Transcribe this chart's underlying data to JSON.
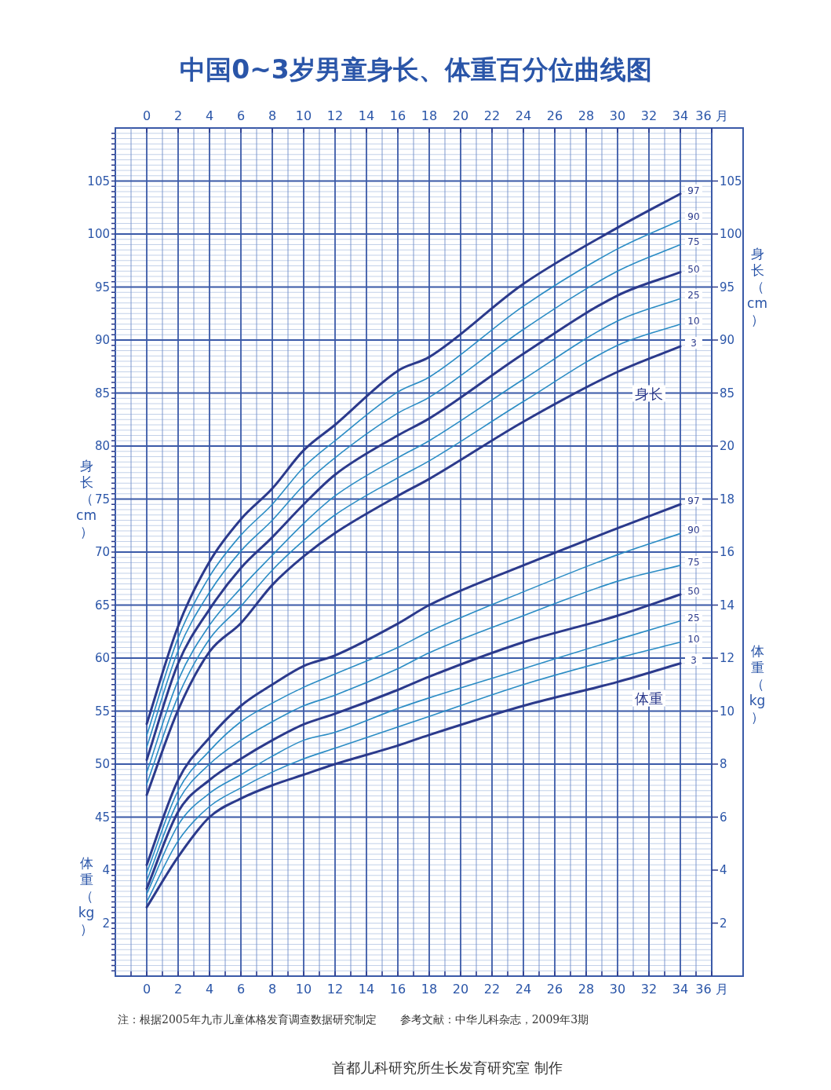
{
  "chart_data": [
    {
      "type": "line",
      "title": "中国0~3岁男童身长、体重百分位曲线图",
      "ylabel": "身长（cm）",
      "y2label": "身长（cm）",
      "x": [
        0,
        2,
        4,
        6,
        8,
        10,
        12,
        16,
        18,
        24,
        30,
        34
      ],
      "xlim": [
        -2,
        36
      ],
      "xticks": [
        0,
        2,
        4,
        6,
        8,
        10,
        12,
        14,
        16,
        18,
        20,
        22,
        24,
        26,
        28,
        30,
        32,
        34,
        {
          "value": 36,
          "label": "36 月"
        },
        {
          "value": -1,
          "label": null
        },
        {
          "value": 1,
          "label": null
        },
        {
          "value": 3,
          "label": null
        },
        {
          "value": 5,
          "label": null
        },
        {
          "value": 7,
          "label": null
        },
        {
          "value": 9,
          "label": null
        },
        {
          "value": 11,
          "label": null
        },
        {
          "value": 13,
          "label": null
        },
        {
          "value": 15,
          "label": null
        },
        {
          "value": 17,
          "label": null
        },
        {
          "value": 19,
          "label": null
        },
        {
          "value": 21,
          "label": null
        },
        {
          "value": 23,
          "label": null
        },
        {
          "value": 25,
          "label": null
        },
        {
          "value": 27,
          "label": null
        },
        {
          "value": 29,
          "label": null
        },
        {
          "value": 31,
          "label": null
        },
        {
          "value": 33,
          "label": null
        },
        {
          "value": 35,
          "label": null
        }
      ],
      "x2lim": [
        -2,
        36
      ],
      "x2ticks": [
        0,
        2,
        4,
        6,
        8,
        10,
        12,
        14,
        16,
        18,
        20,
        22,
        24,
        26,
        28,
        30,
        32,
        34,
        {
          "value": 36,
          "label": "36 月"
        }
      ],
      "ylim": [
        30,
        110
      ],
      "yticks": [
        45,
        50,
        55,
        60,
        65,
        70,
        75,
        80,
        85,
        90,
        95,
        100,
        105,
        {
          "value": 35,
          "label": null
        },
        {
          "value": 40,
          "label": null
        },
        {
          "value": 30.5,
          "label": null
        },
        {
          "value": 31,
          "label": null
        },
        {
          "value": 31.5,
          "label": null
        },
        {
          "value": 32,
          "label": null
        },
        {
          "value": 32.5,
          "label": null
        },
        {
          "value": 33,
          "label": null
        },
        {
          "value": 33.5,
          "label": null
        },
        {
          "value": 34,
          "label": null
        },
        {
          "value": 34.5,
          "label": null
        },
        {
          "value": 35.5,
          "label": null
        },
        {
          "value": 36,
          "label": null
        },
        {
          "value": 36.5,
          "label": null
        },
        {
          "value": 37,
          "label": null
        },
        {
          "value": 37.5,
          "label": null
        },
        {
          "value": 38,
          "label": null
        },
        {
          "value": 38.5,
          "label": null
        },
        {
          "value": 39,
          "label": null
        },
        {
          "value": 39.5,
          "label": null
        },
        {
          "value": 40.5,
          "label": null
        },
        {
          "value": 41,
          "label": null
        },
        {
          "value": 41.5,
          "label": null
        },
        {
          "value": 42,
          "label": null
        },
        {
          "value": 42.5,
          "label": null
        },
        {
          "value": 43,
          "label": null
        },
        {
          "value": 43.5,
          "label": null
        },
        {
          "value": 44,
          "label": null
        },
        {
          "value": 44.5,
          "label": null
        },
        {
          "value": 45.5,
          "label": null
        },
        {
          "value": 46,
          "label": null
        },
        {
          "value": 46.5,
          "label": null
        },
        {
          "value": 47,
          "label": null
        },
        {
          "value": 47.5,
          "label": null
        },
        {
          "value": 48,
          "label": null
        },
        {
          "value": 48.5,
          "label": null
        },
        {
          "value": 49,
          "label": null
        },
        {
          "value": 49.5,
          "label": null
        },
        {
          "value": 50.5,
          "label": null
        },
        {
          "value": 51,
          "label": null
        },
        {
          "value": 51.5,
          "label": null
        },
        {
          "value": 52,
          "label": null
        },
        {
          "value": 52.5,
          "label": null
        },
        {
          "value": 53,
          "label": null
        },
        {
          "value": 53.5,
          "label": null
        },
        {
          "value": 54,
          "label": null
        },
        {
          "value": 54.5,
          "label": null
        },
        {
          "value": 55.5,
          "label": null
        },
        {
          "value": 56,
          "label": null
        },
        {
          "value": 56.5,
          "label": null
        },
        {
          "value": 57,
          "label": null
        },
        {
          "value": 57.5,
          "label": null
        },
        {
          "value": 58,
          "label": null
        },
        {
          "value": 58.5,
          "label": null
        },
        {
          "value": 59,
          "label": null
        },
        {
          "value": 59.5,
          "label": null
        },
        {
          "value": 60.5,
          "label": null
        },
        {
          "value": 61,
          "label": null
        },
        {
          "value": 61.5,
          "label": null
        },
        {
          "value": 62,
          "label": null
        },
        {
          "value": 62.5,
          "label": null
        },
        {
          "value": 63,
          "label": null
        },
        {
          "value": 63.5,
          "label": null
        },
        {
          "value": 64,
          "label": null
        },
        {
          "value": 64.5,
          "label": null
        },
        {
          "value": 65.5,
          "label": null
        },
        {
          "value": 66,
          "label": null
        },
        {
          "value": 66.5,
          "label": null
        },
        {
          "value": 67,
          "label": null
        },
        {
          "value": 67.5,
          "label": null
        },
        {
          "value": 68,
          "label": null
        },
        {
          "value": 68.5,
          "label": null
        },
        {
          "value": 69,
          "label": null
        },
        {
          "value": 69.5,
          "label": null
        },
        {
          "value": 70.5,
          "label": null
        },
        {
          "value": 71,
          "label": null
        },
        {
          "value": 71.5,
          "label": null
        },
        {
          "value": 72,
          "label": null
        },
        {
          "value": 72.5,
          "label": null
        },
        {
          "value": 73,
          "label": null
        },
        {
          "value": 73.5,
          "label": null
        },
        {
          "value": 74,
          "label": null
        },
        {
          "value": 74.5,
          "label": null
        },
        {
          "value": 75.5,
          "label": null
        },
        {
          "value": 76,
          "label": null
        },
        {
          "value": 76.5,
          "label": null
        },
        {
          "value": 77,
          "label": null
        },
        {
          "value": 77.5,
          "label": null
        },
        {
          "value": 78,
          "label": null
        },
        {
          "value": 78.5,
          "label": null
        },
        {
          "value": 79,
          "label": null
        },
        {
          "value": 79.5,
          "label": null
        },
        {
          "value": 80.5,
          "label": null
        },
        {
          "value": 81,
          "label": null
        },
        {
          "value": 81.5,
          "label": null
        },
        {
          "value": 82,
          "label": null
        },
        {
          "value": 82.5,
          "label": null
        },
        {
          "value": 83,
          "label": null
        },
        {
          "value": 83.5,
          "label": null
        },
        {
          "value": 84,
          "label": null
        },
        {
          "value": 84.5,
          "label": null
        },
        {
          "value": 85.5,
          "label": null
        },
        {
          "value": 86,
          "label": null
        },
        {
          "value": 86.5,
          "label": null
        },
        {
          "value": 87,
          "label": null
        },
        {
          "value": 87.5,
          "label": null
        },
        {
          "value": 88,
          "label": null
        },
        {
          "value": 88.5,
          "label": null
        },
        {
          "value": 89,
          "label": null
        },
        {
          "value": 89.5,
          "label": null
        },
        {
          "value": 90.5,
          "label": null
        },
        {
          "value": 91,
          "label": null
        },
        {
          "value": 91.5,
          "label": null
        },
        {
          "value": 92,
          "label": null
        },
        {
          "value": 92.5,
          "label": null
        },
        {
          "value": 93,
          "label": null
        },
        {
          "value": 93.5,
          "label": null
        },
        {
          "value": 94,
          "label": null
        },
        {
          "value": 94.5,
          "label": null
        },
        {
          "value": 95.5,
          "label": null
        },
        {
          "value": 96,
          "label": null
        },
        {
          "value": 96.5,
          "label": null
        },
        {
          "value": 97,
          "label": null
        },
        {
          "value": 97.5,
          "label": null
        },
        {
          "value": 98,
          "label": null
        },
        {
          "value": 98.5,
          "label": null
        },
        {
          "value": 99,
          "label": null
        },
        {
          "value": 99.5,
          "label": null
        },
        {
          "value": 100.5,
          "label": null
        },
        {
          "value": 101,
          "label": null
        },
        {
          "value": 101.5,
          "label": null
        },
        {
          "value": 102,
          "label": null
        },
        {
          "value": 102.5,
          "label": null
        },
        {
          "value": 103,
          "label": null
        },
        {
          "value": 103.5,
          "label": null
        },
        {
          "value": 104,
          "label": null
        },
        {
          "value": 104.5,
          "label": null
        },
        {
          "value": 105.5,
          "label": null
        },
        {
          "value": 106,
          "label": null
        },
        {
          "value": 106.5,
          "label": null
        },
        {
          "value": 107,
          "label": null
        },
        {
          "value": 107.5,
          "label": null
        },
        {
          "value": 108,
          "label": null
        },
        {
          "value": 108.5,
          "label": null
        },
        {
          "value": 109,
          "label": null
        },
        {
          "value": 109.5,
          "label": null
        }
      ],
      "y2lim": [
        30,
        110
      ],
      "y2ticks": [
        85,
        90,
        95,
        100,
        105
      ],
      "grid": true,
      "series": [
        {
          "name": "97",
          "color": "#2b3a8c",
          "values": [
            53.8,
            63.0,
            69.1,
            73.1,
            76.0,
            79.6,
            82.0,
            87.1,
            88.4,
            95.3,
            100.6,
            103.8
          ]
        },
        {
          "name": "90",
          "color": "#2a8cc4",
          "values": [
            52.7,
            61.9,
            67.7,
            71.6,
            74.5,
            78.0,
            80.5,
            85.1,
            86.5,
            93.2,
            98.6,
            101.3
          ]
        },
        {
          "name": "75",
          "color": "#2a8cc4",
          "values": [
            51.6,
            60.7,
            66.2,
            70.1,
            73.0,
            76.3,
            78.9,
            83.1,
            84.6,
            91.0,
            96.5,
            99.0
          ]
        },
        {
          "name": "50",
          "color": "#2b3a8c",
          "values": [
            50.4,
            59.5,
            64.6,
            68.5,
            71.4,
            74.5,
            77.3,
            81.0,
            82.6,
            88.7,
            94.2,
            96.4
          ]
        },
        {
          "name": "25",
          "color": "#2a8cc4",
          "values": [
            49.2,
            57.9,
            63.1,
            66.6,
            69.7,
            72.7,
            75.3,
            78.9,
            80.5,
            86.3,
            91.8,
            93.9
          ]
        },
        {
          "name": "10",
          "color": "#2a8cc4",
          "values": [
            48.1,
            56.4,
            61.8,
            64.9,
            68.3,
            71.1,
            73.5,
            77.0,
            78.6,
            84.2,
            89.5,
            91.5
          ]
        },
        {
          "name": "3",
          "color": "#2b3a8c",
          "values": [
            47.1,
            55.1,
            60.6,
            63.3,
            66.9,
            69.6,
            71.8,
            75.3,
            76.9,
            82.3,
            87.0,
            89.4
          ]
        }
      ],
      "annotations": [
        {
          "text": "身长",
          "x": 32,
          "y": 85
        },
        "注：根据2005年九市儿童体格发育调查数据研究制定",
        "参考文献：中华儿科杂志，2009年3期",
        "首都儿科研究所生长发育研究室 制作"
      ]
    },
    {
      "type": "line",
      "ylabel": "体重（kg）",
      "y2label": "体重（kg）",
      "tick_labels": "y",
      "x": [
        0,
        2,
        4,
        6,
        8,
        10,
        12,
        16,
        18,
        24,
        30,
        34
      ],
      "xlim": [
        -2,
        36
      ],
      "ylim": [
        0,
        32
      ],
      "yticks": [
        2,
        4
      ],
      "y2lim": [
        0,
        32
      ],
      "y2ticks": [
        2,
        4,
        6,
        8,
        10,
        12,
        14,
        16,
        18,
        20
      ],
      "series": [
        {
          "name": "97",
          "color": "#2b3a8c",
          "values": [
            4.2,
            7.4,
            9.0,
            10.2,
            11.0,
            11.7,
            12.1,
            13.3,
            14.0,
            15.5,
            16.9,
            17.8
          ]
        },
        {
          "name": "90",
          "color": "#2a8cc4",
          "values": [
            3.9,
            7.0,
            8.5,
            9.6,
            10.3,
            10.9,
            11.4,
            12.4,
            13.0,
            14.5,
            15.9,
            16.7
          ]
        },
        {
          "name": "75",
          "color": "#2a8cc4",
          "values": [
            3.6,
            6.6,
            8.0,
            8.9,
            9.6,
            10.2,
            10.6,
            11.6,
            12.2,
            13.6,
            14.9,
            15.5
          ]
        },
        {
          "name": "50",
          "color": "#2b3a8c",
          "values": [
            3.3,
            6.2,
            7.4,
            8.2,
            8.9,
            9.5,
            9.9,
            10.8,
            11.3,
            12.6,
            13.6,
            14.4
          ]
        },
        {
          "name": "25",
          "color": "#2a8cc4",
          "values": [
            3.1,
            5.7,
            6.9,
            7.6,
            8.3,
            8.9,
            9.2,
            10.1,
            10.5,
            11.6,
            12.7,
            13.4
          ]
        },
        {
          "name": "10",
          "color": "#2a8cc4",
          "values": [
            2.8,
            5.1,
            6.4,
            7.1,
            7.7,
            8.2,
            8.6,
            9.4,
            9.8,
            11.0,
            12.0,
            12.6
          ]
        },
        {
          "name": "3",
          "color": "#2b3a8c",
          "values": [
            2.6,
            4.5,
            6.0,
            6.7,
            7.2,
            7.6,
            8.0,
            8.7,
            9.1,
            10.2,
            11.1,
            11.8
          ]
        }
      ],
      "annotations": [
        {
          "text": "体重",
          "x": 32,
          "y": 10.5
        }
      ]
    }
  ]
}
